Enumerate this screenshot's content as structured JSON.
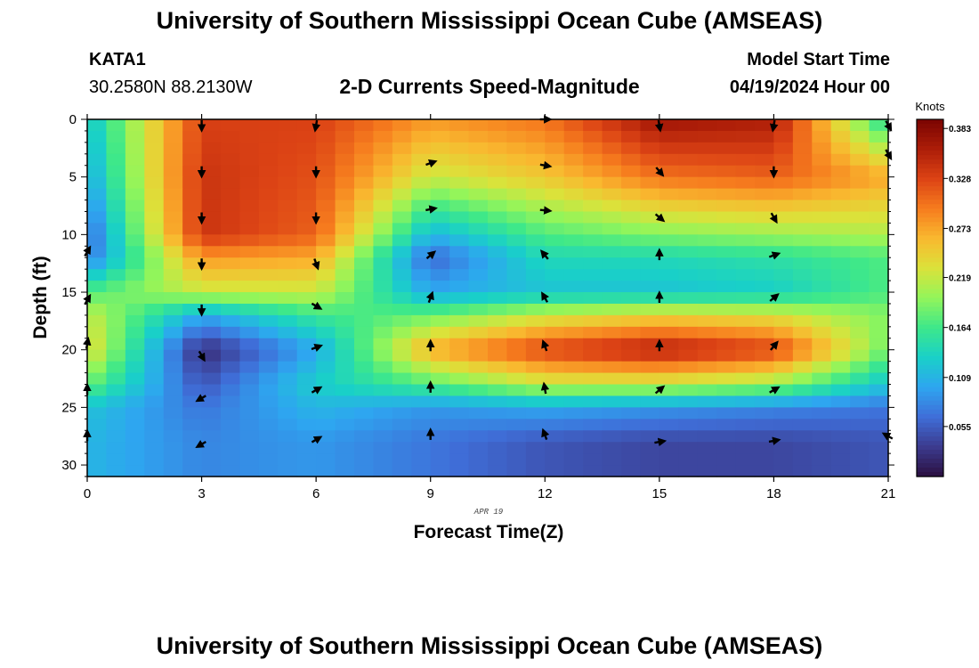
{
  "header": {
    "title_top": "University of Southern Mississippi Ocean Cube (AMSEAS)",
    "title_bottom": "University of Southern Mississippi Ocean Cube (AMSEAS)",
    "station_id": "KATA1",
    "station_coords": "30.2580N  88.2130W",
    "model_label": "Model Start Time",
    "model_date": "04/19/2024 Hour 00"
  },
  "chart_data": {
    "type": "heatmap",
    "title": "2-D Currents Speed-Magnitude",
    "xlabel": "Forecast Time(Z)",
    "ylabel": "Depth (ft)",
    "date_label": "APR 19",
    "xlim": [
      0,
      21
    ],
    "ylim": [
      0,
      31
    ],
    "x_ticks": [
      0,
      3,
      6,
      9,
      12,
      15,
      18,
      21
    ],
    "y_ticks": [
      0,
      5,
      10,
      15,
      20,
      25,
      30
    ],
    "colorbar": {
      "label": "Knots",
      "range": [
        0.0,
        0.393
      ],
      "ticks": [
        0.383,
        0.328,
        0.273,
        0.219,
        0.164,
        0.109,
        0.055
      ],
      "tick_labels": [
        "0.383",
        "0.328",
        "0.273",
        "0.219",
        "0.164",
        "0.109",
        "0.055"
      ],
      "colors": [
        "#2b0f40",
        "#3c3b8f",
        "#3f6ed8",
        "#2ea6f0",
        "#19d0c8",
        "#3ee88a",
        "#93f55a",
        "#dbe23a",
        "#f9b82f",
        "#f67c1e",
        "#dc4315",
        "#ac1d08",
        "#7a0402"
      ]
    },
    "speed_grid": {
      "times": [
        0,
        3,
        6,
        9,
        12,
        15,
        18,
        21
      ],
      "depths": [
        0,
        5,
        10,
        12,
        15,
        17,
        20,
        23,
        25,
        28,
        31
      ],
      "values": [
        [
          0.12,
          0.33,
          0.33,
          0.28,
          0.3,
          0.37,
          0.36,
          0.14
        ],
        [
          0.1,
          0.34,
          0.32,
          0.22,
          0.25,
          0.3,
          0.31,
          0.27
        ],
        [
          0.06,
          0.34,
          0.31,
          0.11,
          0.17,
          0.19,
          0.2,
          0.21
        ],
        [
          0.07,
          0.28,
          0.27,
          0.06,
          0.14,
          0.14,
          0.15,
          0.17
        ],
        [
          0.17,
          0.22,
          0.22,
          0.1,
          0.12,
          0.12,
          0.13,
          0.17
        ],
        [
          0.22,
          0.1,
          0.16,
          0.18,
          0.22,
          0.24,
          0.23,
          0.19
        ],
        [
          0.24,
          0.02,
          0.1,
          0.27,
          0.33,
          0.36,
          0.33,
          0.18
        ],
        [
          0.18,
          0.05,
          0.13,
          0.17,
          0.22,
          0.22,
          0.2,
          0.12
        ],
        [
          0.12,
          0.07,
          0.11,
          0.09,
          0.1,
          0.09,
          0.08,
          0.07
        ],
        [
          0.11,
          0.08,
          0.09,
          0.07,
          0.05,
          0.04,
          0.04,
          0.05
        ],
        [
          0.11,
          0.08,
          0.09,
          0.07,
          0.05,
          0.04,
          0.04,
          0.05
        ]
      ]
    },
    "arrows": [
      {
        "t": 3,
        "d": 0.5,
        "angle": 90
      },
      {
        "t": 6,
        "d": 0.5,
        "angle": 100
      },
      {
        "t": 12,
        "d": 0,
        "angle": 0
      },
      {
        "t": 15,
        "d": 0.5,
        "angle": 80
      },
      {
        "t": 18,
        "d": 0.5,
        "angle": 100
      },
      {
        "t": 21,
        "d": 0.5,
        "angle": 60
      },
      {
        "t": 3,
        "d": 4.5,
        "angle": 90
      },
      {
        "t": 6,
        "d": 4.5,
        "angle": 90
      },
      {
        "t": 9,
        "d": 3.8,
        "angle": -20
      },
      {
        "t": 12,
        "d": 4,
        "angle": 10
      },
      {
        "t": 15,
        "d": 4.5,
        "angle": 50
      },
      {
        "t": 18,
        "d": 4.5,
        "angle": 90
      },
      {
        "t": 21,
        "d": 3,
        "angle": 60
      },
      {
        "t": 3,
        "d": 8.5,
        "angle": 90
      },
      {
        "t": 6,
        "d": 8.5,
        "angle": 90
      },
      {
        "t": 9,
        "d": 7.8,
        "angle": -10
      },
      {
        "t": 12,
        "d": 7.9,
        "angle": 5
      },
      {
        "t": 15,
        "d": 8.5,
        "angle": 40
      },
      {
        "t": 18,
        "d": 8.5,
        "angle": 60
      },
      {
        "t": 0,
        "d": 11.5,
        "angle": -60
      },
      {
        "t": 3,
        "d": 12.5,
        "angle": 90
      },
      {
        "t": 6,
        "d": 12.5,
        "angle": 70
      },
      {
        "t": 9,
        "d": 11.8,
        "angle": -40
      },
      {
        "t": 12,
        "d": 11.8,
        "angle": -130
      },
      {
        "t": 15,
        "d": 11.8,
        "angle": -90
      },
      {
        "t": 18,
        "d": 11.8,
        "angle": -20
      },
      {
        "t": 0,
        "d": 15.7,
        "angle": -60
      },
      {
        "t": 3,
        "d": 16.5,
        "angle": 90
      },
      {
        "t": 6,
        "d": 16.2,
        "angle": 30
      },
      {
        "t": 9,
        "d": 15.5,
        "angle": -70
      },
      {
        "t": 12,
        "d": 15.5,
        "angle": -120
      },
      {
        "t": 15,
        "d": 15.5,
        "angle": -90
      },
      {
        "t": 18,
        "d": 15.5,
        "angle": -40
      },
      {
        "t": 0,
        "d": 19.5,
        "angle": -80
      },
      {
        "t": 3,
        "d": 20.5,
        "angle": 60
      },
      {
        "t": 6,
        "d": 19.8,
        "angle": -20
      },
      {
        "t": 9,
        "d": 19.7,
        "angle": -90
      },
      {
        "t": 12,
        "d": 19.7,
        "angle": -110
      },
      {
        "t": 15,
        "d": 19.7,
        "angle": -90
      },
      {
        "t": 18,
        "d": 19.7,
        "angle": -50
      },
      {
        "t": 0,
        "d": 23.5,
        "angle": -90
      },
      {
        "t": 3,
        "d": 24.2,
        "angle": 150
      },
      {
        "t": 6,
        "d": 23.5,
        "angle": -30
      },
      {
        "t": 9,
        "d": 23.3,
        "angle": -90
      },
      {
        "t": 12,
        "d": 23.4,
        "angle": -100
      },
      {
        "t": 15,
        "d": 23.5,
        "angle": -40
      },
      {
        "t": 18,
        "d": 23.5,
        "angle": -30
      },
      {
        "t": 0,
        "d": 27.5,
        "angle": -90
      },
      {
        "t": 3,
        "d": 28.2,
        "angle": 150
      },
      {
        "t": 6,
        "d": 27.8,
        "angle": -30
      },
      {
        "t": 9,
        "d": 27.4,
        "angle": -90
      },
      {
        "t": 12,
        "d": 27.4,
        "angle": -110
      },
      {
        "t": 15,
        "d": 28,
        "angle": -10
      },
      {
        "t": 18,
        "d": 27.9,
        "angle": -10
      },
      {
        "t": 21,
        "d": 27.5,
        "angle": -150
      }
    ]
  }
}
